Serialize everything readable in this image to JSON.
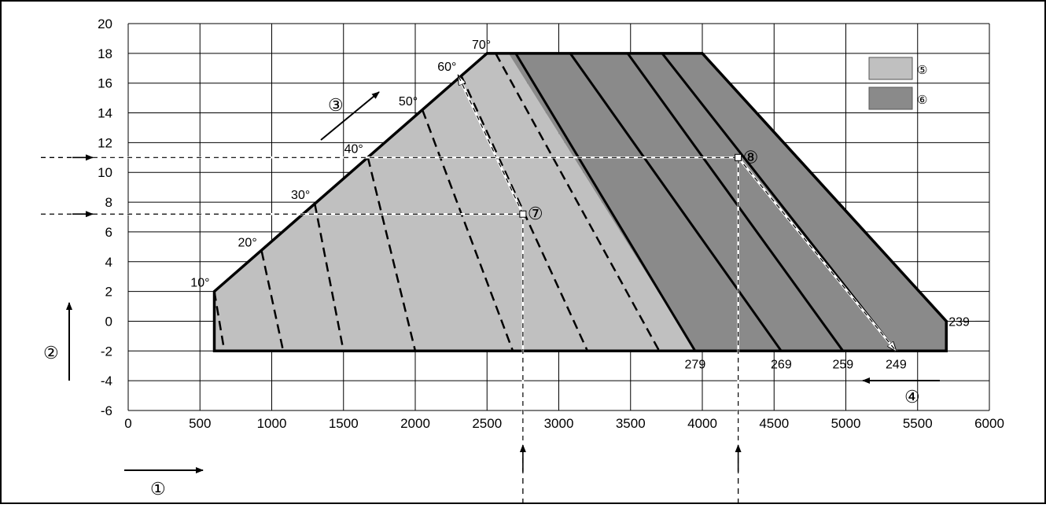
{
  "chart_data": {
    "type": "area",
    "title": "",
    "xlabel": "",
    "ylabel": "",
    "xlim": [
      0,
      6000
    ],
    "ylim": [
      -6,
      20
    ],
    "x_ticks": [
      "0",
      "500",
      "1000",
      "1500",
      "2000",
      "2500",
      "3000",
      "3500",
      "4000",
      "4500",
      "5000",
      "5500",
      "6000"
    ],
    "y_ticks": [
      "20",
      "18",
      "16",
      "14",
      "12",
      "10",
      "8",
      "6",
      "4",
      "2",
      "0",
      "-2",
      "-4",
      "-6"
    ],
    "grid": true,
    "regions": [
      {
        "legend_marker": "5",
        "color": "#c0c0c0",
        "polygon": [
          [
            600,
            -2
          ],
          [
            600,
            2
          ],
          [
            2500,
            18
          ],
          [
            2650,
            18
          ],
          [
            3950,
            -2
          ]
        ]
      },
      {
        "legend_marker": "6",
        "color": "#8a8a8a",
        "polygon": [
          [
            2650,
            18
          ],
          [
            4000,
            18
          ],
          [
            5700,
            0
          ],
          [
            5700,
            -2
          ],
          [
            3950,
            -2
          ]
        ]
      }
    ],
    "outline": [
      [
        600,
        -2
      ],
      [
        600,
        2
      ],
      [
        2500,
        18
      ],
      [
        4000,
        18
      ],
      [
        5700,
        0
      ],
      [
        5700,
        -2
      ]
    ],
    "angle_lines": [
      {
        "label": "10°",
        "top": [
          600,
          2
        ],
        "bottom": [
          670,
          -2
        ]
      },
      {
        "label": "20°",
        "top": [
          930,
          4.7
        ],
        "bottom": [
          1080,
          -2
        ]
      },
      {
        "label": "30°",
        "top": [
          1300,
          7.9
        ],
        "bottom": [
          1500,
          -2
        ]
      },
      {
        "label": "40°",
        "top": [
          1670,
          11
        ],
        "bottom": [
          2000,
          -2
        ]
      },
      {
        "label": "50°",
        "top": [
          2050,
          14.2
        ],
        "bottom": [
          2680,
          -2
        ]
      },
      {
        "label": "60°",
        "top": [
          2320,
          16.5
        ],
        "bottom": [
          3200,
          -2
        ]
      },
      {
        "label": "70°",
        "top": [
          2560,
          18
        ],
        "bottom": [
          3700,
          -2
        ]
      }
    ],
    "iso_lines": [
      {
        "label": "279",
        "top": [
          2700,
          18
        ],
        "bottom": [
          3950,
          -2
        ]
      },
      {
        "label": "269",
        "top": [
          3080,
          18
        ],
        "bottom": [
          4550,
          -2
        ]
      },
      {
        "label": "259",
        "top": [
          3480,
          18
        ],
        "bottom": [
          4980,
          -2
        ]
      },
      {
        "label": "249",
        "top": [
          3720,
          18
        ],
        "bottom": [
          5350,
          -2
        ]
      },
      {
        "label": "239",
        "top": [
          4000,
          18
        ],
        "bottom": [
          5700,
          0
        ]
      }
    ],
    "examples": [
      {
        "marker": "7",
        "point": [
          2750,
          7.2
        ],
        "arrow_to": [
          2300,
          16.5
        ]
      },
      {
        "marker": "8",
        "point": [
          4250,
          11
        ],
        "arrow_to": [
          5350,
          -2
        ]
      }
    ],
    "axis_markers": [
      {
        "marker": "1",
        "direction": "right"
      },
      {
        "marker": "2",
        "direction": "up"
      },
      {
        "marker": "3",
        "direction": "up-right"
      },
      {
        "marker": "4",
        "direction": "left"
      }
    ],
    "legend": {
      "placement": "top-right",
      "entries": [
        "5",
        "6"
      ]
    }
  },
  "colors": {
    "light_region": "#c0c0c0",
    "dark_region": "#8a8a8a",
    "line": "#000000",
    "guide": "#ffffff"
  },
  "legend_markers": {
    "light": "⑤",
    "dark": "⑥"
  },
  "callout_markers": {
    "c1": "①",
    "c2": "②",
    "c3": "③",
    "c4": "④",
    "c7": "⑦",
    "c8": "⑧"
  }
}
